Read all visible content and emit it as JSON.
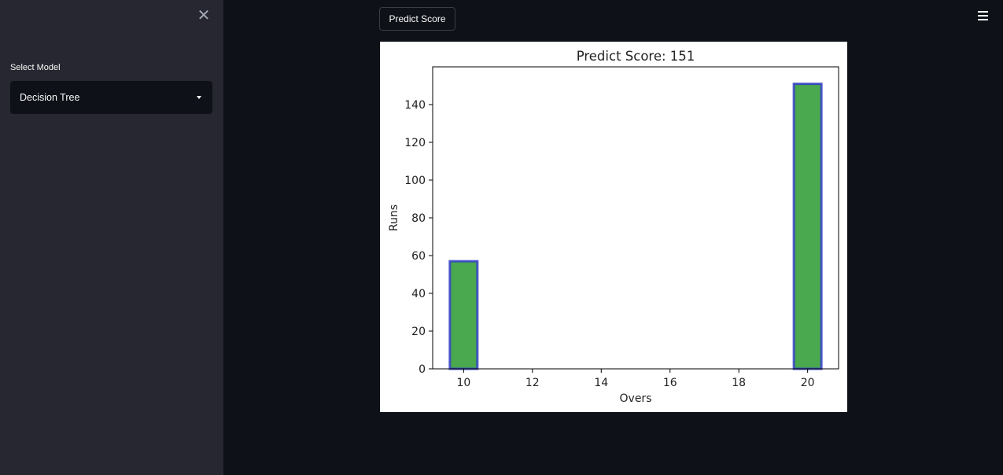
{
  "sidebar": {
    "close_label": "✕",
    "select_label": "Select Model",
    "selected_model": "Decision Tree"
  },
  "toolbar": {
    "predict_button_label": "Predict Score"
  },
  "colors": {
    "app_background": "#0e1117",
    "sidebar_background": "#262730",
    "bar_fill": "#4aa84e",
    "bar_edge": "#3240c8"
  },
  "icons": {
    "close": "close-icon",
    "menu": "hamburger-menu-icon",
    "dropdown": "chevron-down-icon"
  },
  "chart_data": {
    "type": "bar",
    "title": "Predict Score: 151",
    "xlabel": "Overs",
    "ylabel": "Runs",
    "x": [
      10,
      20
    ],
    "values": [
      57,
      151
    ],
    "xlim": [
      9.1,
      20.9
    ],
    "ylim": [
      0,
      160
    ],
    "xticks": [
      10,
      12,
      14,
      16,
      18,
      20
    ],
    "yticks": [
      0,
      20,
      40,
      60,
      80,
      100,
      120,
      140
    ],
    "bar_width": 0.8,
    "grid": false
  }
}
